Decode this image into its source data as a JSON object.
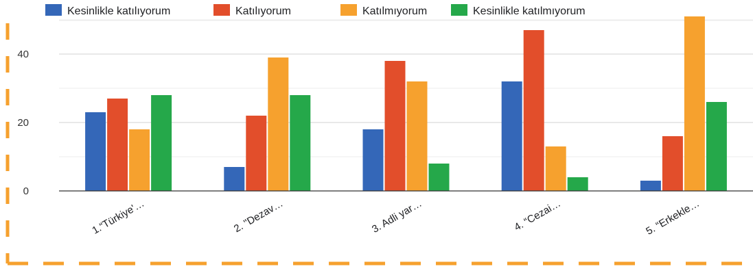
{
  "chart_data": {
    "type": "bar",
    "categories": [
      "1.“Türkiye'…",
      "2. \"Dezav…",
      "3. Adli yar…",
      "4. “Cezai…",
      "5. “Erkekle…"
    ],
    "series": [
      {
        "name": "Kesinlikle katılıyorum",
        "color": "#3467b8",
        "values": [
          23,
          7,
          18,
          32,
          3
        ]
      },
      {
        "name": "Katılıyorum",
        "color": "#e24e2b",
        "values": [
          27,
          22,
          38,
          47,
          16
        ]
      },
      {
        "name": "Katılmıyorum",
        "color": "#f6a12e",
        "values": [
          18,
          39,
          32,
          13,
          51
        ]
      },
      {
        "name": "Kesinlikle katılmıyorum",
        "color": "#25a84a",
        "values": [
          28,
          28,
          8,
          4,
          26
        ]
      }
    ],
    "yticks": [
      0,
      20,
      40
    ],
    "ylim": [
      0,
      51
    ],
    "grid": true,
    "legend_position": "top",
    "title": "",
    "xlabel": "",
    "ylabel": ""
  },
  "frame": {
    "border_color": "#f6a12e",
    "style": "dashed"
  }
}
